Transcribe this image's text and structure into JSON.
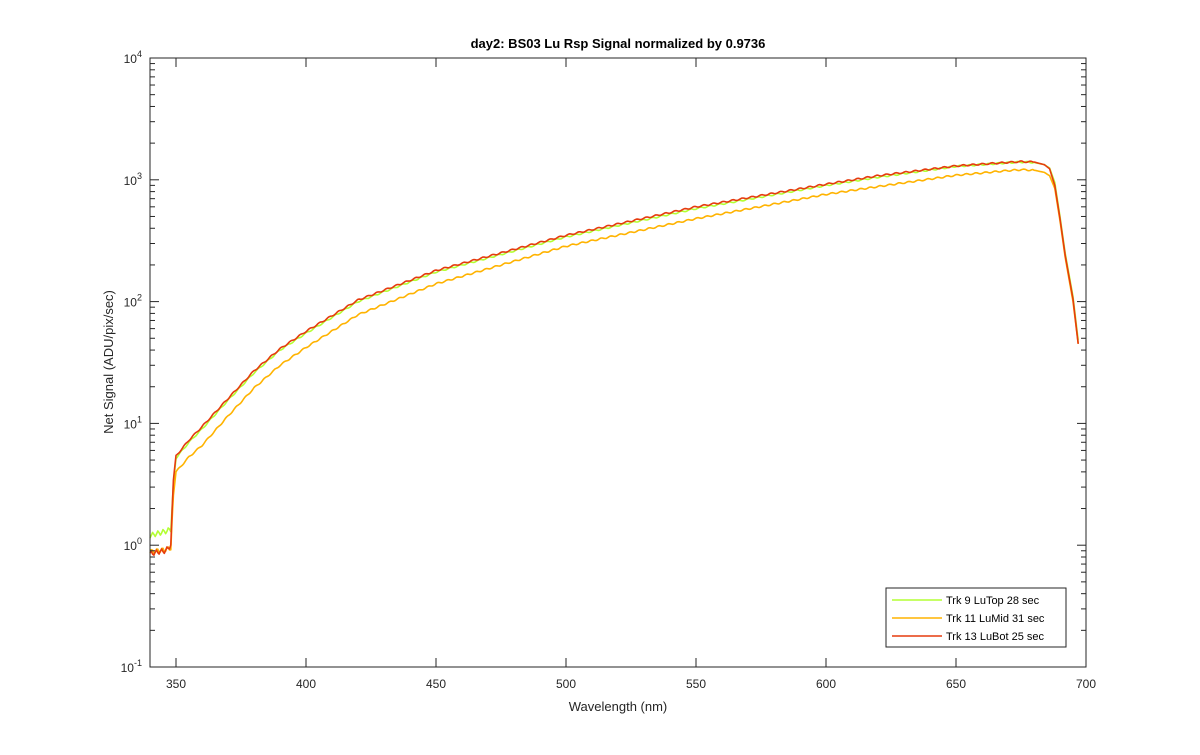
{
  "chart_data": {
    "type": "line",
    "title": "day2: BS03  Lu Rsp Signal normalized by 0.9736",
    "xlabel": "Wavelength (nm)",
    "ylabel": "Net Signal (ADU/pix/sec)",
    "xlim": [
      340,
      700
    ],
    "ylim": [
      0.1,
      10000
    ],
    "yscale": "log",
    "grid": false,
    "legend_position": "bottom-right",
    "xticks": [
      350,
      400,
      450,
      500,
      550,
      600,
      650,
      700
    ],
    "xtick_labels": [
      "350",
      "400",
      "450",
      "500",
      "550",
      "600",
      "650",
      "700"
    ],
    "yticks": [
      0.1,
      1,
      10,
      100,
      1000,
      10000
    ],
    "ytick_labels": [
      {
        "base": "10",
        "exp": "-1"
      },
      {
        "base": "10",
        "exp": "0"
      },
      {
        "base": "10",
        "exp": "1"
      },
      {
        "base": "10",
        "exp": "2"
      },
      {
        "base": "10",
        "exp": "3"
      },
      {
        "base": "10",
        "exp": "4"
      }
    ],
    "series": [
      {
        "name": "Trk 9 LuTop 28 sec",
        "color": "#b3ff33",
        "x": [
          340,
          343,
          346,
          348,
          349,
          350,
          355,
          360,
          370,
          380,
          390,
          400,
          420,
          450,
          500,
          550,
          600,
          620,
          650,
          670,
          675,
          680,
          684,
          686,
          688,
          690,
          692,
          695,
          697
        ],
        "y": [
          1.2,
          1.25,
          1.3,
          1.35,
          3.2,
          5.2,
          7.0,
          9.0,
          15.5,
          26,
          40,
          55,
          100,
          175,
          340,
          580,
          900,
          1050,
          1290,
          1380,
          1400,
          1390,
          1330,
          1250,
          950,
          500,
          250,
          110,
          48
        ]
      },
      {
        "name": "Trk 11 LuMid 31 sec",
        "color": "#ffb300",
        "x": [
          340,
          343,
          346,
          348,
          349,
          350,
          355,
          360,
          370,
          380,
          390,
          400,
          420,
          450,
          500,
          550,
          600,
          620,
          650,
          670,
          675,
          680,
          684,
          686,
          688,
          690,
          692,
          695,
          697
        ],
        "y": [
          0.88,
          0.9,
          0.92,
          0.95,
          2.6,
          4.0,
          5.3,
          6.6,
          11.5,
          19.5,
          30,
          42,
          78,
          140,
          285,
          480,
          760,
          880,
          1090,
          1190,
          1210,
          1200,
          1150,
          1080,
          850,
          460,
          230,
          100,
          45
        ]
      },
      {
        "name": "Trk 13 LuBot 25 sec",
        "color": "#e63b0f",
        "x": [
          340,
          343,
          346,
          348,
          349,
          350,
          355,
          360,
          370,
          380,
          390,
          400,
          420,
          450,
          500,
          550,
          600,
          620,
          650,
          670,
          675,
          680,
          684,
          686,
          688,
          690,
          692,
          695,
          697
        ],
        "y": [
          0.85,
          0.88,
          0.9,
          1.0,
          3.4,
          5.4,
          7.3,
          9.4,
          16,
          27,
          41,
          57,
          103,
          180,
          350,
          600,
          920,
          1080,
          1300,
          1390,
          1410,
          1400,
          1330,
          1230,
          900,
          480,
          240,
          105,
          45
        ]
      }
    ]
  }
}
